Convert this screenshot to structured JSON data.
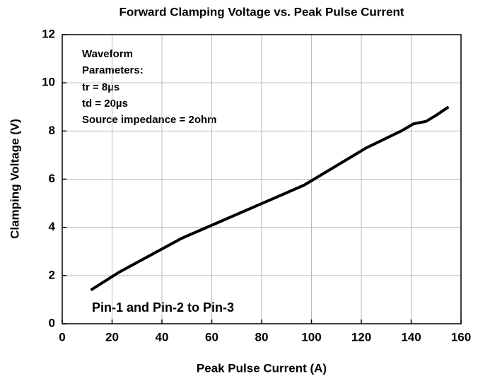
{
  "chart_data": {
    "type": "line",
    "title": "Forward Clamping Voltage vs. Peak Pulse Current",
    "x_label": "Peak Pulse Current (A)",
    "y_label": "Clamping Voltage (V)",
    "annotations": [
      "Waveform",
      "Parameters:",
      "tr = 8µs",
      "td = 20µs",
      "Source impedance = 2ohm",
      "Pin-1 and Pin-2 to Pin-3"
    ],
    "x": [
      11.5,
      23,
      48,
      97,
      122,
      136,
      141,
      146,
      150,
      155
    ],
    "series": [
      {
        "name": "Clamping Voltage",
        "color": "#000000",
        "values": [
          1.4,
          2.15,
          3.55,
          5.75,
          7.3,
          8.0,
          8.3,
          8.4,
          8.65,
          9.0
        ]
      }
    ],
    "xlim": [
      0,
      160
    ],
    "xticks": [
      0,
      20,
      40,
      60,
      80,
      100,
      120,
      140,
      160
    ],
    "ylim": [
      0,
      12
    ],
    "yticks": [
      0,
      2,
      4,
      6,
      8,
      10,
      12
    ],
    "grid": true
  }
}
